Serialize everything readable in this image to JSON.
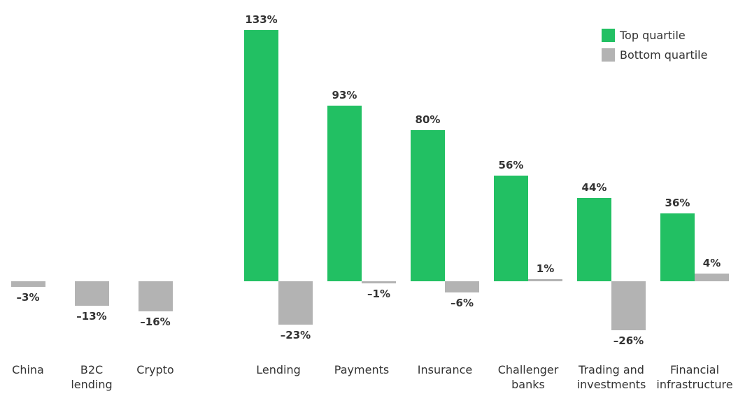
{
  "chart_data": {
    "type": "bar",
    "categories": [
      "China",
      "B2C lending",
      "Crypto",
      "Lending",
      "Payments",
      "Insurance",
      "Challenger banks",
      "Trading and investments",
      "Financial infrastructure"
    ],
    "series": [
      {
        "name": "Top quartile",
        "color": "#22c063",
        "values": [
          null,
          null,
          null,
          133,
          93,
          80,
          56,
          44,
          36
        ],
        "value_labels": [
          null,
          null,
          null,
          "133%",
          "93%",
          "80%",
          "56%",
          "44%",
          "36%"
        ]
      },
      {
        "name": "Bottom quartile",
        "color": "#b3b3b3",
        "values": [
          -3,
          -13,
          -16,
          -23,
          -1,
          -6,
          1,
          -26,
          4
        ],
        "value_labels": [
          "–3%",
          "–13%",
          "–16%",
          "–23%",
          "–1%",
          "–6%",
          "1%",
          "–26%",
          "4%"
        ]
      }
    ],
    "ylim": [
      -30,
      135
    ],
    "legend": "top-right"
  }
}
